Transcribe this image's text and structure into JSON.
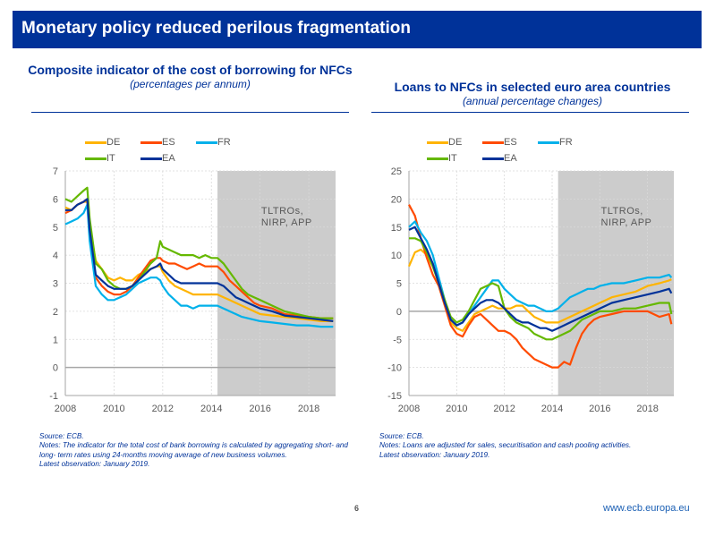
{
  "header": {
    "title": "Monetary policy reduced perilous fragmentation"
  },
  "footer": {
    "page_number": "6",
    "url": "www.ecb.europa.eu"
  },
  "colors": {
    "DE": "#ffb400",
    "ES": "#ff4b00",
    "FR": "#00b1ea",
    "IT": "#65b800",
    "EA": "#003299",
    "shade": "#cccccc",
    "brand": "#003299"
  },
  "chart_data": [
    {
      "type": "line",
      "title": "Composite indicator of the cost of borrowing for NFCs",
      "subtitle": "(percentages per annum)",
      "xlabel": "",
      "ylabel": "",
      "xlim": [
        2008,
        2019.1
      ],
      "ylim": [
        -1,
        7
      ],
      "yticks": [
        -1,
        0,
        1,
        2,
        3,
        4,
        5,
        6,
        7
      ],
      "xticks": [
        2008,
        2010,
        2012,
        2014,
        2016,
        2018
      ],
      "xtick_labels": [
        "2008",
        "2010",
        "2012",
        "2014",
        "2016",
        "2018"
      ],
      "grid": true,
      "legend": {
        "position": "top-left",
        "entries": [
          "DE",
          "ES",
          "FR",
          "IT",
          "EA"
        ]
      },
      "shaded_region": {
        "from": 2014.25,
        "to": 2019.1,
        "label": [
          "TLTROs,",
          "NIRP, APP"
        ]
      },
      "x": [
        2008.0,
        2008.25,
        2008.5,
        2008.75,
        2008.9,
        2009.0,
        2009.25,
        2009.5,
        2009.75,
        2010.0,
        2010.25,
        2010.5,
        2010.75,
        2011.0,
        2011.25,
        2011.5,
        2011.75,
        2011.9,
        2012.0,
        2012.25,
        2012.5,
        2012.75,
        2013.0,
        2013.25,
        2013.5,
        2013.75,
        2014.0,
        2014.25,
        2014.5,
        2014.75,
        2015.0,
        2015.25,
        2015.5,
        2015.75,
        2016.0,
        2016.5,
        2017.0,
        2017.5,
        2018.0,
        2018.5,
        2019.0
      ],
      "series": [
        {
          "name": "DE",
          "values": [
            5.7,
            5.6,
            5.8,
            5.9,
            5.9,
            5.0,
            3.8,
            3.5,
            3.2,
            3.1,
            3.2,
            3.1,
            3.1,
            3.3,
            3.4,
            3.5,
            3.6,
            3.6,
            3.4,
            3.1,
            2.9,
            2.8,
            2.7,
            2.6,
            2.6,
            2.6,
            2.6,
            2.6,
            2.5,
            2.4,
            2.3,
            2.2,
            2.1,
            2.0,
            1.9,
            1.85,
            1.8,
            1.75,
            1.7,
            1.65,
            1.65
          ]
        },
        {
          "name": "ES",
          "values": [
            5.5,
            5.6,
            5.8,
            5.9,
            6.0,
            4.8,
            3.2,
            2.9,
            2.7,
            2.6,
            2.6,
            2.7,
            2.9,
            3.2,
            3.5,
            3.8,
            3.9,
            3.9,
            3.8,
            3.7,
            3.7,
            3.6,
            3.5,
            3.6,
            3.7,
            3.6,
            3.6,
            3.6,
            3.4,
            3.1,
            2.9,
            2.7,
            2.5,
            2.3,
            2.2,
            2.1,
            1.9,
            1.85,
            1.8,
            1.75,
            1.75
          ]
        },
        {
          "name": "FR",
          "values": [
            5.1,
            5.2,
            5.3,
            5.5,
            5.8,
            4.5,
            2.9,
            2.6,
            2.4,
            2.4,
            2.5,
            2.6,
            2.8,
            3.0,
            3.1,
            3.2,
            3.2,
            3.1,
            2.9,
            2.6,
            2.4,
            2.2,
            2.2,
            2.1,
            2.2,
            2.2,
            2.2,
            2.2,
            2.1,
            2.0,
            1.9,
            1.8,
            1.75,
            1.7,
            1.65,
            1.6,
            1.55,
            1.5,
            1.5,
            1.45,
            1.45
          ]
        },
        {
          "name": "IT",
          "values": [
            6.0,
            5.9,
            6.1,
            6.3,
            6.4,
            5.3,
            3.7,
            3.5,
            3.1,
            2.9,
            2.8,
            2.8,
            2.9,
            3.1,
            3.4,
            3.7,
            3.9,
            4.5,
            4.3,
            4.2,
            4.1,
            4.0,
            4.0,
            4.0,
            3.9,
            4.0,
            3.9,
            3.9,
            3.7,
            3.4,
            3.1,
            2.8,
            2.6,
            2.5,
            2.4,
            2.2,
            2.0,
            1.9,
            1.8,
            1.75,
            1.75
          ]
        },
        {
          "name": "EA",
          "values": [
            5.6,
            5.6,
            5.8,
            5.9,
            6.0,
            4.9,
            3.3,
            3.1,
            2.9,
            2.8,
            2.8,
            2.8,
            2.9,
            3.1,
            3.3,
            3.5,
            3.6,
            3.7,
            3.5,
            3.3,
            3.1,
            3.0,
            3.0,
            3.0,
            3.0,
            3.0,
            3.0,
            3.0,
            2.9,
            2.7,
            2.5,
            2.4,
            2.3,
            2.2,
            2.1,
            2.0,
            1.85,
            1.8,
            1.75,
            1.7,
            1.65
          ]
        }
      ],
      "notes": [
        "Source: ECB.",
        "Notes: The indicator for the total cost of bank borrowing is calculated by aggregating short- and long- term rates using 24-months moving average of new business volumes.",
        "Latest observation: January 2019."
      ]
    },
    {
      "type": "line",
      "title": "Loans to NFCs in selected euro area countries",
      "subtitle": "(annual percentage changes)",
      "xlabel": "",
      "ylabel": "",
      "xlim": [
        2008,
        2019.1
      ],
      "ylim": [
        -15,
        25
      ],
      "yticks": [
        -15,
        -10,
        -5,
        0,
        5,
        10,
        15,
        20,
        25
      ],
      "xticks": [
        2008,
        2010,
        2012,
        2014,
        2016,
        2018
      ],
      "xtick_labels": [
        "2008",
        "2010",
        "2012",
        "2014",
        "2016",
        "2018"
      ],
      "grid": true,
      "legend": {
        "position": "top-left",
        "entries": [
          "DE",
          "ES",
          "FR",
          "IT",
          "EA"
        ]
      },
      "shaded_region": {
        "from": 2014.25,
        "to": 2019.1,
        "label": [
          "TLTROs,",
          "NIRP, APP"
        ]
      },
      "x": [
        2008.0,
        2008.25,
        2008.5,
        2008.75,
        2009.0,
        2009.25,
        2009.5,
        2009.75,
        2010.0,
        2010.25,
        2010.5,
        2010.75,
        2011.0,
        2011.25,
        2011.5,
        2011.75,
        2012.0,
        2012.25,
        2012.5,
        2012.75,
        2013.0,
        2013.25,
        2013.5,
        2013.75,
        2014.0,
        2014.25,
        2014.5,
        2014.75,
        2015.0,
        2015.25,
        2015.5,
        2015.75,
        2016.0,
        2016.5,
        2017.0,
        2017.5,
        2018.0,
        2018.5,
        2018.9,
        2019.0
      ],
      "series": [
        {
          "name": "DE",
          "values": [
            8.0,
            10.5,
            11.0,
            10.0,
            8.0,
            5.0,
            1.5,
            -2.0,
            -3.0,
            -3.5,
            -2.0,
            -0.5,
            0.0,
            0.5,
            1.0,
            0.5,
            0.5,
            0.5,
            1.0,
            1.0,
            0.0,
            -1.0,
            -1.5,
            -2.0,
            -2.0,
            -2.0,
            -1.5,
            -1.0,
            -0.5,
            0.0,
            0.5,
            1.0,
            1.5,
            2.5,
            3.0,
            3.5,
            4.5,
            5.0,
            5.5,
            5.7
          ]
        },
        {
          "name": "ES",
          "values": [
            19.0,
            17.0,
            13.0,
            9.5,
            6.5,
            4.5,
            1.0,
            -2.5,
            -4.0,
            -4.5,
            -2.5,
            -1.0,
            -0.5,
            -1.5,
            -2.5,
            -3.5,
            -3.5,
            -4.0,
            -5.0,
            -6.5,
            -7.5,
            -8.5,
            -9.0,
            -9.5,
            -10.0,
            -10.0,
            -9.0,
            -9.5,
            -6.5,
            -4.0,
            -2.5,
            -1.5,
            -1.0,
            -0.5,
            0.0,
            0.0,
            0.0,
            -1.0,
            -0.5,
            -2.3
          ]
        },
        {
          "name": "FR",
          "values": [
            15.0,
            16.0,
            14.0,
            12.5,
            10.0,
            6.0,
            2.0,
            -1.5,
            -2.5,
            -2.0,
            -0.5,
            1.0,
            2.5,
            4.0,
            5.5,
            5.5,
            4.0,
            3.0,
            2.0,
            1.5,
            1.0,
            1.0,
            0.5,
            0.0,
            0.0,
            0.5,
            1.5,
            2.5,
            3.0,
            3.5,
            4.0,
            4.0,
            4.5,
            5.0,
            5.0,
            5.5,
            6.0,
            6.0,
            6.5,
            6.0
          ]
        },
        {
          "name": "IT",
          "values": [
            13.0,
            13.0,
            12.5,
            10.5,
            8.0,
            5.0,
            2.0,
            -1.0,
            -2.0,
            -1.5,
            0.0,
            2.0,
            4.0,
            4.5,
            5.0,
            4.5,
            0.5,
            -1.0,
            -2.0,
            -2.5,
            -3.0,
            -4.0,
            -4.5,
            -5.0,
            -5.0,
            -4.5,
            -4.0,
            -3.5,
            -2.5,
            -1.5,
            -1.0,
            -0.5,
            0.0,
            0.0,
            0.5,
            0.5,
            1.0,
            1.5,
            1.5,
            -0.5
          ]
        },
        {
          "name": "EA",
          "values": [
            14.5,
            15.0,
            13.0,
            11.0,
            8.5,
            5.0,
            1.5,
            -1.5,
            -2.5,
            -2.0,
            -0.5,
            0.5,
            1.5,
            2.0,
            2.0,
            1.5,
            0.5,
            -0.5,
            -1.5,
            -2.0,
            -2.0,
            -2.5,
            -3.0,
            -3.0,
            -3.5,
            -3.0,
            -2.5,
            -2.0,
            -1.5,
            -1.0,
            -0.5,
            0.0,
            0.5,
            1.5,
            2.0,
            2.5,
            3.0,
            3.5,
            4.0,
            3.2
          ]
        }
      ],
      "notes": [
        "Source: ECB.",
        "Notes: Loans are adjusted for sales, securitisation and cash pooling activities.",
        "Latest observation: January 2019."
      ]
    }
  ]
}
